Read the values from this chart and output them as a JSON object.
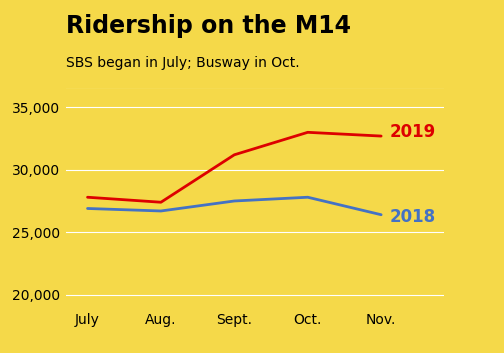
{
  "title": "Ridership on the M14",
  "subtitle": "SBS began in July; Busway in Oct.",
  "x_labels": [
    "July",
    "Aug.",
    "Sept.",
    "Oct.",
    "Nov."
  ],
  "x_values": [
    0,
    1,
    2,
    3,
    4
  ],
  "series_2019": [
    27800,
    27400,
    31200,
    33000,
    32700
  ],
  "series_2018": [
    26900,
    26700,
    27500,
    27800,
    26400
  ],
  "color_2019": "#dd0000",
  "color_2018": "#4472c4",
  "label_2019": "2019",
  "label_2018": "2018",
  "ylim": [
    19000,
    36500
  ],
  "yticks": [
    20000,
    25000,
    30000,
    35000
  ],
  "background_color": "#f5d949",
  "line_width": 2.0,
  "title_fontsize": 17,
  "subtitle_fontsize": 10,
  "tick_labelsize": 10,
  "label_fontsize": 12,
  "grid_color": "#e8c840"
}
